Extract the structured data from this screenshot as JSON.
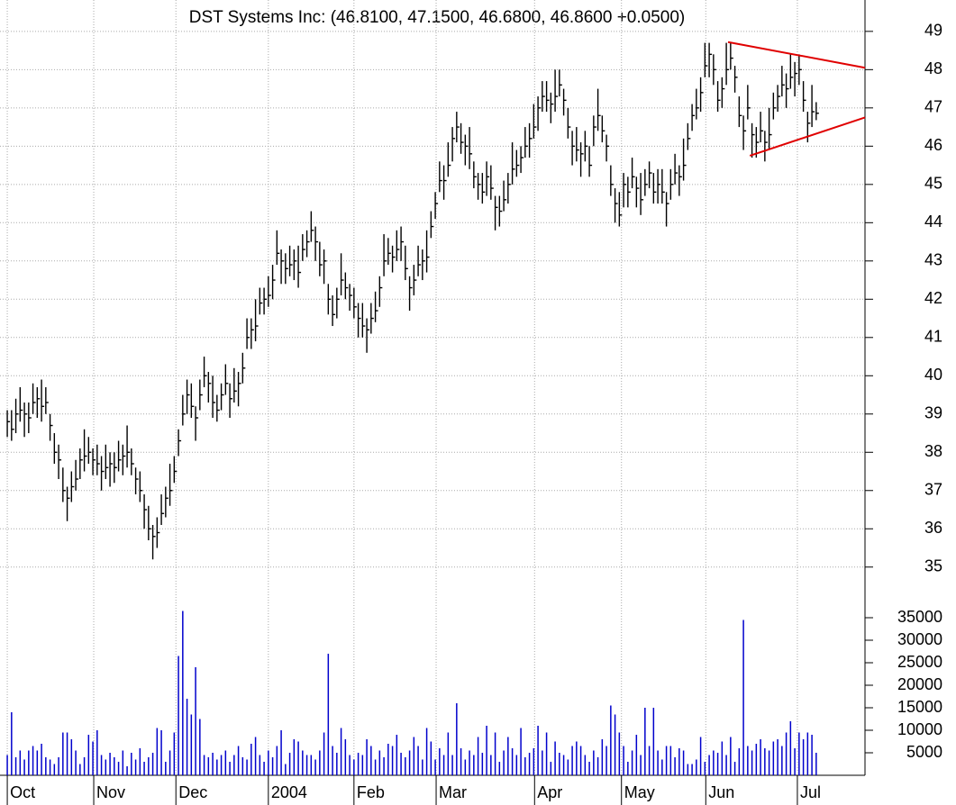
{
  "chart_data": {
    "type": "ohlc",
    "title": "DST Systems Inc: (46.8100, 47.1500, 46.6800, 46.8600 +0.0500)",
    "bar_color": "#000000",
    "volume_color": "#0000cc",
    "grid": true,
    "xlim": [
      -1.7,
      200.4
    ],
    "xticks": [
      {
        "value": 0,
        "label": "Oct"
      },
      {
        "value": 20.2,
        "label": "Nov"
      },
      {
        "value": 39.4,
        "label": "Dec"
      },
      {
        "value": 61,
        "label": "2004"
      },
      {
        "value": 81,
        "label": "Feb"
      },
      {
        "value": 100.2,
        "label": "Mar"
      },
      {
        "value": 123.2,
        "label": "Apr"
      },
      {
        "value": 143.5,
        "label": "May"
      },
      {
        "value": 163.2,
        "label": "Jun"
      },
      {
        "value": 184.6,
        "label": "Jul"
      }
    ],
    "ylim": [
      34.5,
      49.82
    ],
    "yticks": [
      35,
      36,
      37,
      38,
      39,
      40,
      41,
      42,
      43,
      44,
      45,
      46,
      47,
      48,
      49
    ],
    "y2lim": [
      0,
      40000
    ],
    "y2ticks": [
      5000,
      10000,
      15000,
      20000,
      25000,
      30000,
      35000
    ],
    "high": [
      39.1,
      39.1,
      39.4,
      39.7,
      39.3,
      39.3,
      39.8,
      39.7,
      39.9,
      39.7,
      39.0,
      38.5,
      38.2,
      37.6,
      37.1,
      37.5,
      37.8,
      38.1,
      38.6,
      38.4,
      38.1,
      38.2,
      37.9,
      38.2,
      38.0,
      38.0,
      38.3,
      38.2,
      38.7,
      38.1,
      37.6,
      37.5,
      36.9,
      36.6,
      36.1,
      36.3,
      36.9,
      37.1,
      37.7,
      37.9,
      38.6,
      39.5,
      39.9,
      39.8,
      39.2,
      39.9,
      40.5,
      40.1,
      40.0,
      39.5,
      39.8,
      40.3,
      39.8,
      40.2,
      40.1,
      40.6,
      41.5,
      41.5,
      42.0,
      42.3,
      42.3,
      42.6,
      42.9,
      43.8,
      43.3,
      43.2,
      43.4,
      43.3,
      43.4,
      43.7,
      43.8,
      44.3,
      43.9,
      43.5,
      43.3,
      42.4,
      42.1,
      42.3,
      43.2,
      42.7,
      42.4,
      42.3,
      41.9,
      41.9,
      41.5,
      41.9,
      42.2,
      42.6,
      43.7,
      43.6,
      43.4,
      43.8,
      43.9,
      43.4,
      42.6,
      42.9,
      43.4,
      43.3,
      43.8,
      44.3,
      44.8,
      45.6,
      45.5,
      46.1,
      46.5,
      46.9,
      46.6,
      46.3,
      46.5,
      45.6,
      45.3,
      45.3,
      45.6,
      45.5,
      44.7,
      44.7,
      45.1,
      45.3,
      46.1,
      45.9,
      46.0,
      46.5,
      46.6,
      47.1,
      47.3,
      47.7,
      47.7,
      47.4,
      48.0,
      48.0,
      47.5,
      47.0,
      46.4,
      46.5,
      46.1,
      46.4,
      46.0,
      46.8,
      47.5,
      46.8,
      46.3,
      45.5,
      44.9,
      44.8,
      45.3,
      45.2,
      45.7,
      45.2,
      45.3,
      45.4,
      45.6,
      45.3,
      45.4,
      45.4,
      44.8,
      45.4,
      45.8,
      45.5,
      46.2,
      46.6,
      47.1,
      47.5,
      47.8,
      48.7,
      48.7,
      48.4,
      47.7,
      47.8,
      48.7,
      48.7,
      48.1,
      47.3,
      46.8,
      47.6,
      46.6,
      46.5,
      46.9,
      46.4,
      47.0,
      47.4,
      47.6,
      48.1,
      47.9,
      48.4,
      48.2,
      48.4,
      47.7,
      46.9,
      47.6,
      47.15
    ],
    "low": [
      38.4,
      38.3,
      38.5,
      38.8,
      38.4,
      38.5,
      39.0,
      38.9,
      38.8,
      39.0,
      38.3,
      37.7,
      37.3,
      36.7,
      36.2,
      36.7,
      37.0,
      37.3,
      37.5,
      37.7,
      37.4,
      37.4,
      37.0,
      37.3,
      37.1,
      37.2,
      37.5,
      37.4,
      37.6,
      37.4,
      36.9,
      36.7,
      36.0,
      35.7,
      35.2,
      35.5,
      36.1,
      36.3,
      36.6,
      37.2,
      37.9,
      38.7,
      39.0,
      38.9,
      38.3,
      39.1,
      39.7,
      39.3,
      38.9,
      38.8,
      39.1,
      39.5,
      38.9,
      39.3,
      39.2,
      39.8,
      40.7,
      40.7,
      40.9,
      41.6,
      41.6,
      41.8,
      42.0,
      42.9,
      42.4,
      42.4,
      42.6,
      42.5,
      42.3,
      43.0,
      43.1,
      43.5,
      43.0,
      42.6,
      42.4,
      41.6,
      41.3,
      41.5,
      42.1,
      42.0,
      41.7,
      41.5,
      41.0,
      41.0,
      40.6,
      41.1,
      41.4,
      41.8,
      42.6,
      42.9,
      42.7,
      43.0,
      43.0,
      42.5,
      41.7,
      42.1,
      42.6,
      42.5,
      42.7,
      43.6,
      44.1,
      44.8,
      44.6,
      45.2,
      45.6,
      46.1,
      45.8,
      45.5,
      45.4,
      44.9,
      44.6,
      44.5,
      44.7,
      44.6,
      43.8,
      43.9,
      44.3,
      44.5,
      45.0,
      45.2,
      45.3,
      45.7,
      45.7,
      46.2,
      46.4,
      46.9,
      46.9,
      46.6,
      46.9,
      47.3,
      46.8,
      46.2,
      45.5,
      45.6,
      45.2,
      45.6,
      45.2,
      46.0,
      46.4,
      46.1,
      45.6,
      44.7,
      44.0,
      43.9,
      44.4,
      44.4,
      44.9,
      44.4,
      44.2,
      44.7,
      44.9,
      44.5,
      44.5,
      44.5,
      43.9,
      44.6,
      45.0,
      44.7,
      45.1,
      45.9,
      46.4,
      46.7,
      46.9,
      47.8,
      47.8,
      47.6,
      46.9,
      47.0,
      47.6,
      48.0,
      47.4,
      46.5,
      45.9,
      46.7,
      45.7,
      45.7,
      46.1,
      45.6,
      45.9,
      46.7,
      46.9,
      47.3,
      47.0,
      47.5,
      47.3,
      47.6,
      46.9,
      46.1,
      46.5,
      46.68
    ],
    "close": [
      38.8,
      38.6,
      39.0,
      39.1,
      39.0,
      38.9,
      39.3,
      39.4,
      39.2,
      39.3,
      38.7,
      38.0,
      37.8,
      37.0,
      36.8,
      37.1,
      37.3,
      37.8,
      37.9,
      38.0,
      37.8,
      37.7,
      37.5,
      37.6,
      37.7,
      37.6,
      37.8,
      37.9,
      38.0,
      37.7,
      37.3,
      37.0,
      36.5,
      36.0,
      35.8,
      35.9,
      36.4,
      36.8,
      37.0,
      37.5,
      38.3,
      39.0,
      39.5,
      39.2,
      38.9,
      39.5,
      40.0,
      39.8,
      39.3,
      39.1,
      39.5,
      39.8,
      39.4,
      39.6,
      39.8,
      40.2,
      41.0,
      41.2,
      41.3,
      41.9,
      42.0,
      42.1,
      42.5,
      43.2,
      43.0,
      42.8,
      42.9,
      43.0,
      42.7,
      43.3,
      43.5,
      43.8,
      43.5,
      42.9,
      43.0,
      42.0,
      41.6,
      42.0,
      42.5,
      42.3,
      42.1,
      41.8,
      41.5,
      41.3,
      41.2,
      41.5,
      41.7,
      42.3,
      43.0,
      43.2,
      43.1,
      43.3,
      43.5,
      42.8,
      42.3,
      42.5,
      42.9,
      43.0,
      43.1,
      43.9,
      44.5,
      45.1,
      45.1,
      45.5,
      46.2,
      46.5,
      46.1,
      46.0,
      45.8,
      45.2,
      45.0,
      44.8,
      45.2,
      44.9,
      44.4,
      44.3,
      44.6,
      45.0,
      45.4,
      45.5,
      45.7,
      46.0,
      46.2,
      46.5,
      47.0,
      47.3,
      47.2,
      47.1,
      47.3,
      47.6,
      47.2,
      46.5,
      46.0,
      45.9,
      45.8,
      46.0,
      45.5,
      46.5,
      46.8,
      46.4,
      46.0,
      45.0,
      44.5,
      44.2,
      45.0,
      44.8,
      45.2,
      44.9,
      44.6,
      45.0,
      45.3,
      44.8,
      45.0,
      44.8,
      44.5,
      45.0,
      45.3,
      45.2,
      45.5,
      46.2,
      46.8,
      47.0,
      47.4,
      48.1,
      48.4,
      48.0,
      47.2,
      47.5,
      48.0,
      48.3,
      47.8,
      46.8,
      46.4,
      47.0,
      46.3,
      46.1,
      46.4,
      46.1,
      46.3,
      47.0,
      47.3,
      47.6,
      47.5,
      47.8,
      47.9,
      48.0,
      47.2,
      46.6,
      46.9,
      46.86
    ],
    "volume": [
      4500,
      14000,
      4000,
      5500,
      3500,
      5500,
      6500,
      5500,
      7000,
      4000,
      3500,
      2500,
      4000,
      9500,
      9500,
      8000,
      5500,
      2500,
      4000,
      9000,
      7500,
      10000,
      4500,
      3500,
      5000,
      4000,
      3000,
      5500,
      2000,
      5000,
      3500,
      6000,
      3000,
      4000,
      5000,
      10500,
      10000,
      3000,
      5500,
      9500,
      26500,
      36500,
      17000,
      13500,
      24000,
      12500,
      4500,
      4000,
      5000,
      3500,
      4500,
      5500,
      3000,
      4500,
      6500,
      4000,
      3500,
      7000,
      8500,
      4500,
      3000,
      5500,
      4000,
      6500,
      10000,
      2500,
      5000,
      8000,
      7500,
      5500,
      4500,
      4500,
      3500,
      5500,
      9500,
      27000,
      6500,
      5000,
      10500,
      8000,
      4500,
      3500,
      5000,
      4500,
      8000,
      6500,
      3500,
      5500,
      4000,
      7000,
      6500,
      9000,
      5000,
      4000,
      5500,
      8500,
      6500,
      3500,
      10500,
      7500,
      3500,
      6000,
      4500,
      9500,
      4500,
      16000,
      6000,
      3500,
      5500,
      4500,
      8500,
      5000,
      11000,
      4500,
      9500,
      3000,
      5500,
      8500,
      6000,
      4500,
      10500,
      4000,
      5000,
      6000,
      11000,
      5500,
      9500,
      3000,
      7500,
      5000,
      4500,
      3500,
      6500,
      7500,
      6500,
      4500,
      3000,
      5500,
      4000,
      8000,
      6500,
      15500,
      13500,
      9500,
      6500,
      3000,
      5500,
      9000,
      4500,
      15000,
      6500,
      15000,
      5500,
      3500,
      6500,
      6500,
      4000,
      6000,
      5500,
      2500,
      2500,
      3500,
      8500,
      3000,
      4500,
      5500,
      5000,
      7500,
      4500,
      8500,
      3000,
      6000,
      34500,
      6500,
      5500,
      7000,
      8000,
      6000,
      5500,
      7500,
      8000,
      6500,
      9500,
      12000,
      6000,
      9500,
      8000,
      9500,
      9000,
      5000
    ],
    "trendlines": [
      {
        "color": "#e00000",
        "x": [
          168.4,
          200.4
        ],
        "y": [
          48.72,
          48.05
        ]
      },
      {
        "color": "#e00000",
        "x": [
          173.5,
          200.4
        ],
        "y": [
          45.75,
          46.75
        ]
      }
    ]
  }
}
